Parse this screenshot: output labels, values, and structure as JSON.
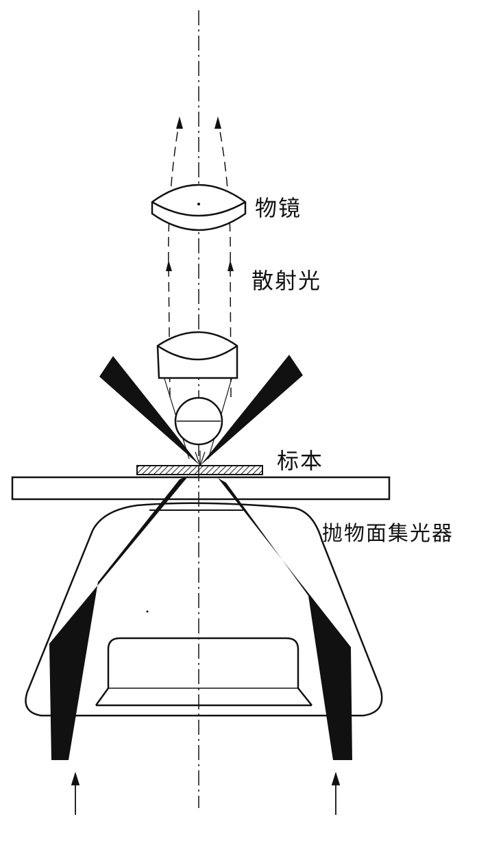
{
  "labels": {
    "objective": "物镜",
    "scattered_light": "散射光",
    "specimen": "标本",
    "condenser": "抛物面集光器"
  },
  "colors": {
    "ink": "#111111",
    "background": "#ffffff"
  }
}
